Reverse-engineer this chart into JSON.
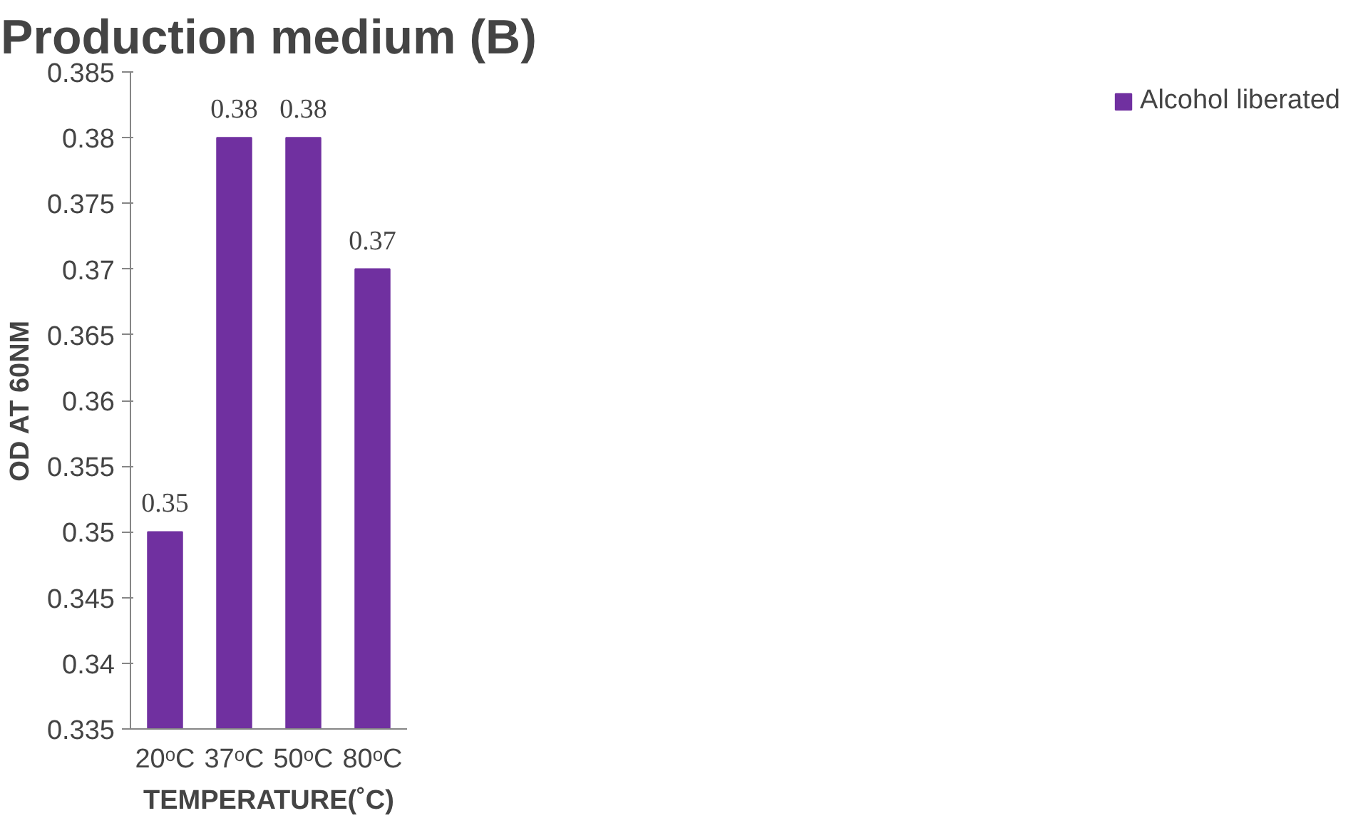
{
  "chart_data": {
    "type": "bar",
    "title": "Production medium (B)",
    "xlabel": "TEMPERATURE(˚C)",
    "ylabel": "OD AT 60NM",
    "categories": [
      "20ᵒC",
      "37ᵒC",
      "50ᵒC",
      "80ᵒC"
    ],
    "series": [
      {
        "name": "Alcohol liberated",
        "color": "#7030a0",
        "values": [
          0.35,
          0.38,
          0.38,
          0.37
        ]
      }
    ],
    "ylim": [
      0.335,
      0.385
    ],
    "yticks": [
      0.335,
      0.34,
      0.345,
      0.35,
      0.355,
      0.36,
      0.365,
      0.37,
      0.375,
      0.38,
      0.385
    ],
    "data_labels": true,
    "grid": false,
    "legend": "right"
  }
}
